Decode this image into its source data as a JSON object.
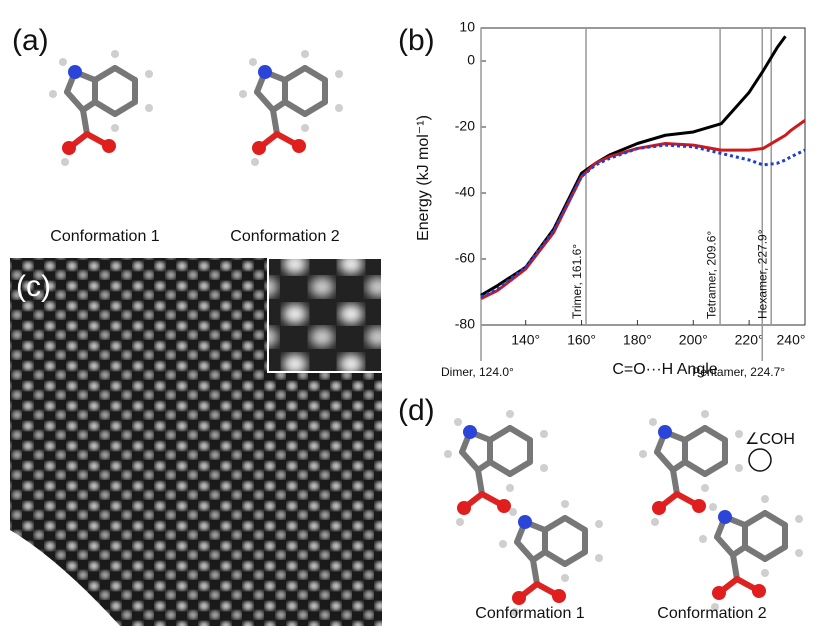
{
  "panels": {
    "a": {
      "label": "(a)",
      "captions": [
        "Conformation 1",
        "Conformation 2"
      ]
    },
    "c": {
      "label": "(c)"
    },
    "d": {
      "label": "(d)",
      "captions": [
        "Conformation 1",
        "Conformation 2"
      ],
      "annotation": "∠COH"
    }
  },
  "chart_data": {
    "type": "line",
    "label": "(b)",
    "x_label": "C=O···H Angle",
    "y_label": "Energy (kJ mol⁻¹)",
    "x": [
      124,
      130,
      140,
      150,
      160,
      165,
      170,
      180,
      190,
      200,
      210,
      220,
      225,
      230,
      233,
      235,
      240
    ],
    "series": [
      {
        "color": "#000000",
        "style": "solid",
        "values": [
          -71,
          -68,
          -62.5,
          -51,
          -34,
          -31,
          -28.5,
          -25,
          -22.5,
          -21.5,
          -19,
          -9.5,
          -3,
          4,
          7.5,
          null,
          null
        ]
      },
      {
        "color": "#d0191b",
        "style": "solid",
        "values": [
          -72,
          -69.5,
          -63,
          -52,
          -35,
          -31,
          -29,
          -26.5,
          -25,
          -25.5,
          -27,
          -27,
          -26.5,
          -24,
          -22.5,
          -21,
          -18
        ]
      },
      {
        "color": "#1f3fcf",
        "style": "dotted",
        "values": [
          -71.5,
          -69,
          -62.5,
          -51.5,
          -35,
          -31.5,
          -29.5,
          -26.5,
          -25.5,
          -26,
          -28,
          -30,
          -31.5,
          -31,
          -30,
          -29,
          -27
        ]
      }
    ],
    "xlim": [
      124,
      240
    ],
    "ylim": [
      -80,
      10
    ],
    "xticks": [
      {
        "value": 140,
        "label": "140°"
      },
      {
        "value": 160,
        "label": "160°"
      },
      {
        "value": 180,
        "label": "180°"
      },
      {
        "value": 200,
        "label": "200°"
      },
      {
        "value": 220,
        "label": "220°"
      },
      {
        "value": 240,
        "label": "240°"
      }
    ],
    "yticks": [
      -80,
      -60,
      -40,
      -20,
      0,
      10
    ],
    "vlines": [
      {
        "value": 124.0,
        "label": "Dimer, 124.0°"
      },
      {
        "value": 161.6,
        "label": "Trimer, 161.6°"
      },
      {
        "value": 209.6,
        "label": "Tetramer, 209.6°"
      },
      {
        "value": 224.7,
        "label": "Pentamer, 224.7°"
      },
      {
        "value": 227.9,
        "label": "Hexamer, 227.9°"
      }
    ]
  }
}
